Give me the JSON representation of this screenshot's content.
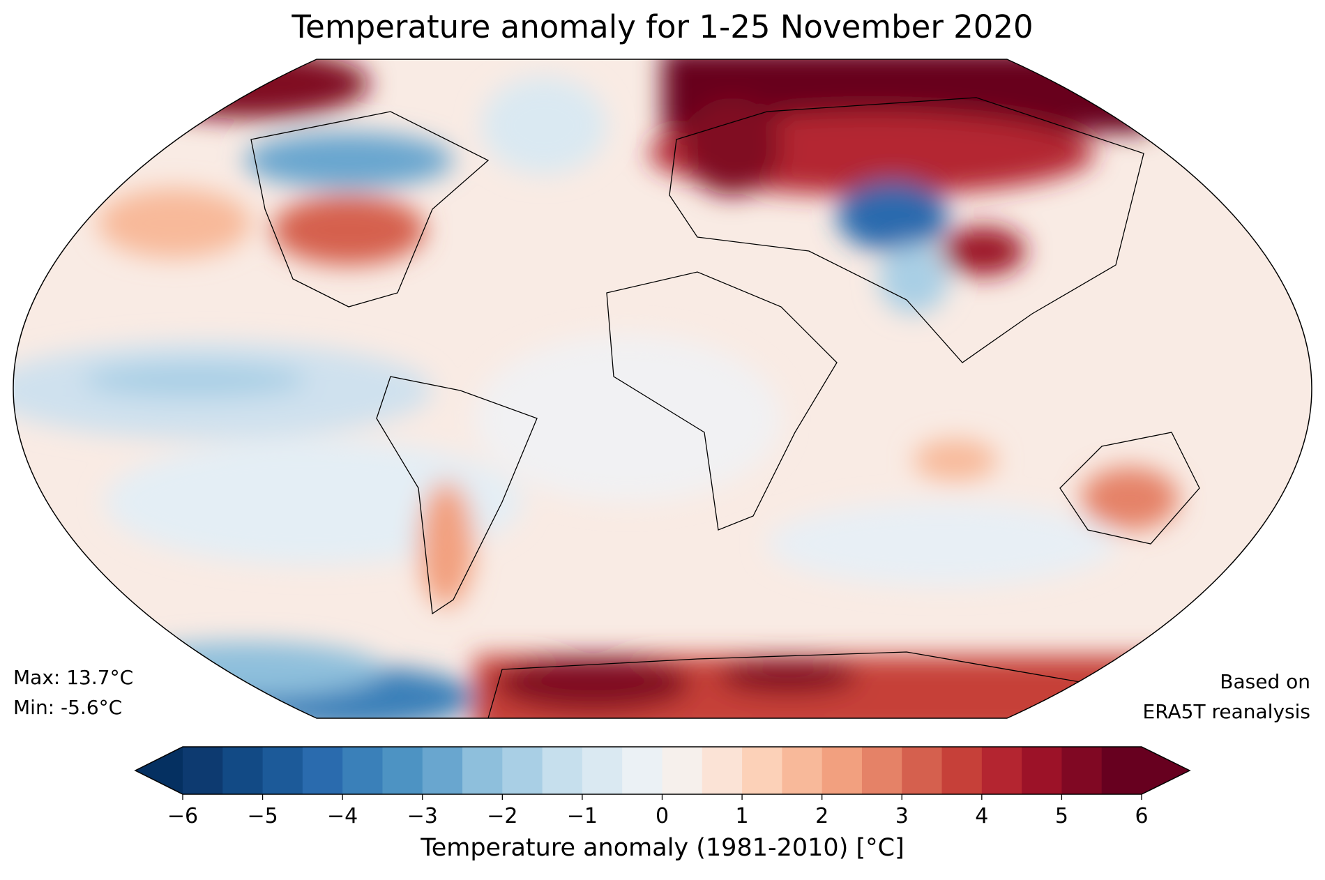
{
  "title": "Temperature anomaly for 1-25 November 2020",
  "stats": {
    "max": "Max: 13.7°C",
    "min": "Min: -5.6°C"
  },
  "source": {
    "line1": "Based on",
    "line2": "ERA5T reanalysis"
  },
  "projection": "Robinson",
  "colorbar": {
    "label": "Temperature anomaly (1981-2010) [°C]",
    "range": [
      -6,
      6
    ],
    "step": 0.5,
    "extend": "both",
    "ticks": [
      "−6",
      "−5",
      "−4",
      "−3",
      "−2",
      "−1",
      "0",
      "1",
      "2",
      "3",
      "4",
      "5",
      "6"
    ],
    "under_color": "#053061",
    "over_color": "#67001f",
    "colors": [
      "#0d3a70",
      "#124a85",
      "#1c5a99",
      "#2a6bae",
      "#3a80b9",
      "#4d93c3",
      "#69a6cf",
      "#8ebfdc",
      "#a9cfe5",
      "#c6dfed",
      "#dae9f2",
      "#ebf1f5",
      "#f6f0ec",
      "#fbe3d6",
      "#fcd1b8",
      "#f8b99a",
      "#f2a07f",
      "#e58267",
      "#d5604e",
      "#c64039",
      "#b42530",
      "#9c1228",
      "#800823",
      "#67001f"
    ]
  }
}
